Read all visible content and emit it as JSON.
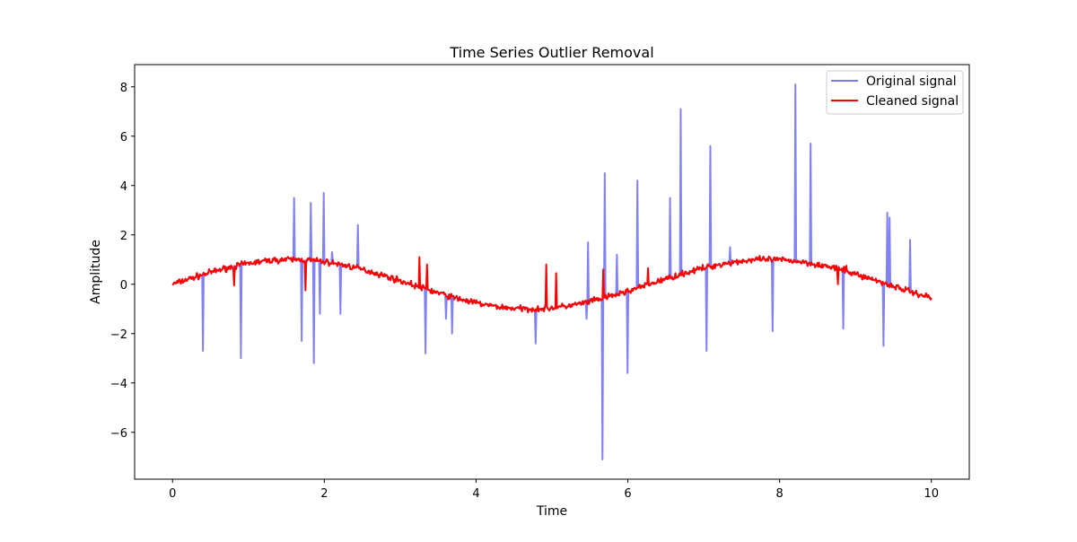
{
  "chart_data": {
    "type": "line",
    "title": "Time Series Outlier Removal",
    "xlabel": "Time",
    "ylabel": "Amplitude",
    "xlim": [
      -0.5,
      10.5
    ],
    "ylim": [
      -7.9,
      8.9
    ],
    "xticks": [
      0,
      2,
      4,
      6,
      8,
      10
    ],
    "yticks": [
      -6,
      -4,
      -2,
      0,
      2,
      4,
      6,
      8
    ],
    "xtick_labels": [
      "0",
      "2",
      "4",
      "6",
      "8",
      "10"
    ],
    "ytick_labels": [
      "−6",
      "−4",
      "−2",
      "0",
      "2",
      "4",
      "6",
      "8"
    ],
    "legend_position": "upper right",
    "grid": false,
    "base_signal": "sin(t) with small noise, t from 0 to 10",
    "series": [
      {
        "name": "Original signal",
        "color": "#7b7bf7",
        "spikes": [
          {
            "x": 0.4,
            "y": -2.7
          },
          {
            "x": 0.9,
            "y": -3.0
          },
          {
            "x": 1.6,
            "y": 3.5
          },
          {
            "x": 1.7,
            "y": -2.3
          },
          {
            "x": 1.82,
            "y": 3.3
          },
          {
            "x": 1.86,
            "y": -3.2
          },
          {
            "x": 1.94,
            "y": -1.2
          },
          {
            "x": 1.99,
            "y": 3.7
          },
          {
            "x": 2.1,
            "y": 1.3
          },
          {
            "x": 2.21,
            "y": -1.2
          },
          {
            "x": 2.44,
            "y": 2.4
          },
          {
            "x": 3.33,
            "y": -2.8
          },
          {
            "x": 3.6,
            "y": -1.4
          },
          {
            "x": 3.68,
            "y": -2.0
          },
          {
            "x": 4.78,
            "y": -2.4
          },
          {
            "x": 5.46,
            "y": -1.4
          },
          {
            "x": 5.48,
            "y": 1.7
          },
          {
            "x": 5.67,
            "y": -7.1
          },
          {
            "x": 5.7,
            "y": 4.5
          },
          {
            "x": 5.86,
            "y": 1.2
          },
          {
            "x": 6.0,
            "y": -3.6
          },
          {
            "x": 6.13,
            "y": 4.2
          },
          {
            "x": 6.56,
            "y": 3.5
          },
          {
            "x": 6.7,
            "y": 7.1
          },
          {
            "x": 7.04,
            "y": -2.7
          },
          {
            "x": 7.09,
            "y": 5.6
          },
          {
            "x": 7.35,
            "y": 1.5
          },
          {
            "x": 7.91,
            "y": -1.9
          },
          {
            "x": 8.21,
            "y": 8.1
          },
          {
            "x": 8.41,
            "y": 5.7
          },
          {
            "x": 8.84,
            "y": -1.8
          },
          {
            "x": 9.37,
            "y": -2.5
          },
          {
            "x": 9.42,
            "y": 2.9
          },
          {
            "x": 9.45,
            "y": 2.7
          },
          {
            "x": 9.72,
            "y": 1.8
          }
        ]
      },
      {
        "name": "Cleaned signal",
        "color": "#ff0000",
        "spikes": [
          {
            "x": 0.81,
            "y": -0.05
          },
          {
            "x": 1.75,
            "y": -0.25
          },
          {
            "x": 3.25,
            "y": 1.1
          },
          {
            "x": 3.35,
            "y": 0.8
          },
          {
            "x": 4.92,
            "y": 0.8
          },
          {
            "x": 5.06,
            "y": 0.45
          },
          {
            "x": 5.68,
            "y": 0.6
          },
          {
            "x": 6.27,
            "y": 0.65
          },
          {
            "x": 8.77,
            "y": 0.0
          },
          {
            "x": 8.88,
            "y": 0.75
          }
        ]
      }
    ]
  }
}
